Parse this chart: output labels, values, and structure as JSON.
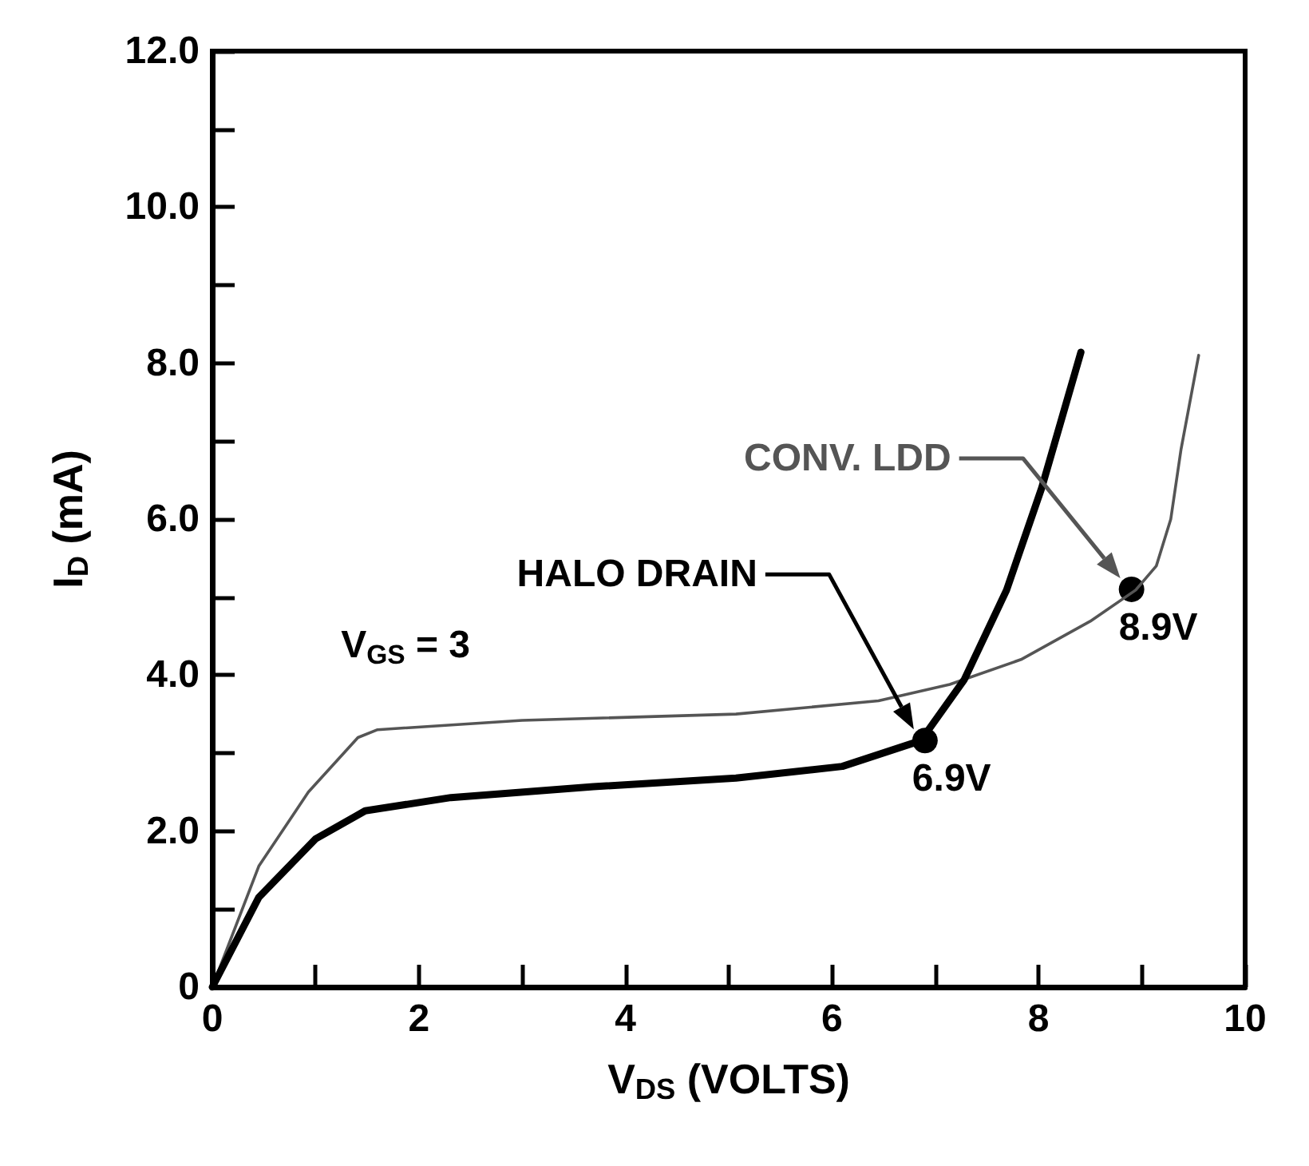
{
  "chart_data": {
    "type": "line",
    "xlabel": "V$_{DS}$ (VOLTS)",
    "ylabel": "I$_{D}$ (mA)",
    "xlim": [
      0,
      10
    ],
    "ylim": [
      0,
      12
    ],
    "xticks": [
      0,
      {
        "value": 1,
        "label": null
      },
      2,
      {
        "value": 3,
        "label": null
      },
      4,
      {
        "value": 5,
        "label": null
      },
      6,
      {
        "value": 7,
        "label": null
      },
      8,
      {
        "value": 9,
        "label": null
      },
      10
    ],
    "yticks": [
      0,
      {
        "value": 1,
        "label": null
      },
      {
        "value": 2,
        "label": "2.0"
      },
      {
        "value": 3,
        "label": null
      },
      {
        "value": 4,
        "label": "4.0"
      },
      {
        "value": 5,
        "label": null
      },
      {
        "value": 6,
        "label": "6.0"
      },
      {
        "value": 7,
        "label": null
      },
      {
        "value": 8,
        "label": "8.0"
      },
      {
        "value": 9,
        "label": null
      },
      {
        "value": 10,
        "label": "10.0"
      },
      {
        "value": 11,
        "label": null
      },
      {
        "value": 12,
        "label": "12.0"
      }
    ],
    "grid": false,
    "legend": false,
    "marker": "none",
    "line_style": "solid",
    "series": [
      {
        "name": "HALO DRAIN",
        "color": "#000000",
        "x": [
          0,
          0.45,
          1.0,
          1.48,
          2.31,
          3.69,
          5.07,
          6.1,
          6.86,
          7.28,
          7.69,
          8.03,
          8.41
        ],
        "values": [
          0,
          1.15,
          1.9,
          2.26,
          2.43,
          2.57,
          2.68,
          2.83,
          3.16,
          3.94,
          5.09,
          6.4,
          8.14
        ]
      },
      {
        "name": "CONV. LDD",
        "color": "#555555",
        "x": [
          0,
          0.45,
          0.93,
          1.41,
          1.6,
          3.0,
          5.07,
          6.45,
          7.14,
          7.83,
          8.5,
          8.94,
          9.14,
          9.28,
          9.38,
          9.55
        ],
        "values": [
          0,
          1.55,
          2.5,
          3.2,
          3.3,
          3.42,
          3.5,
          3.67,
          3.88,
          4.2,
          4.69,
          5.09,
          5.4,
          6.0,
          6.9,
          8.1
        ]
      }
    ],
    "annotations": [
      {
        "text": "6.9V",
        "x": 6.9,
        "y": 3.16
      },
      {
        "text": "8.9V",
        "x": 8.9,
        "y": 5.1
      },
      "V$_{GS}$ = 3"
    ]
  }
}
